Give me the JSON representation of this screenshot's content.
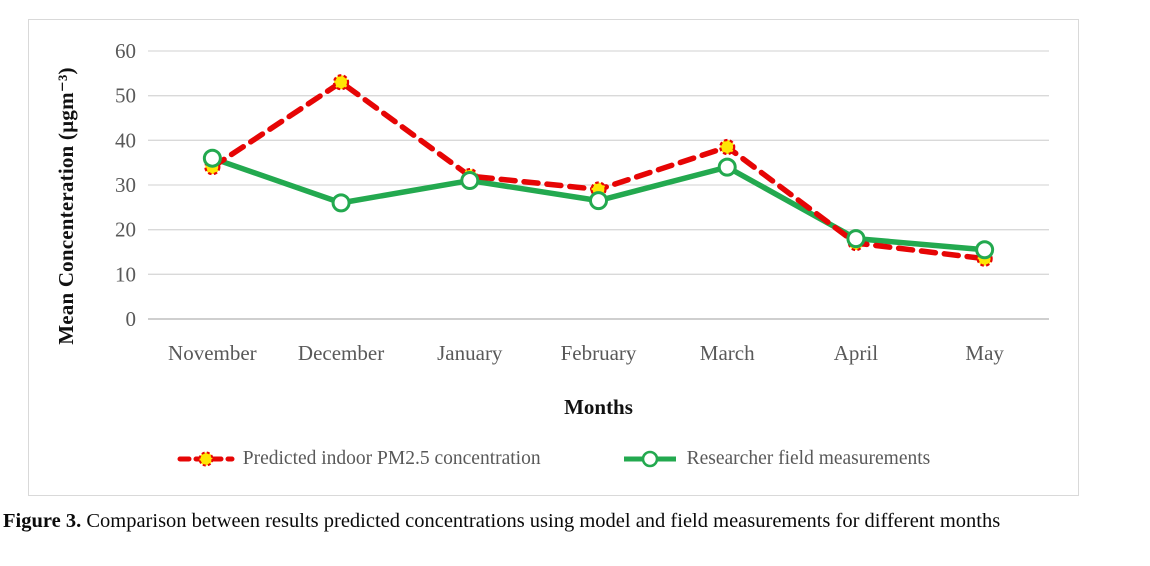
{
  "chart_data": {
    "type": "line",
    "categories": [
      "November",
      "December",
      "January",
      "February",
      "March",
      "April",
      "May"
    ],
    "series": [
      {
        "name": "Predicted indoor PM2.5 concentration",
        "values": [
          34,
          53,
          32,
          29,
          38.5,
          17,
          13.5
        ],
        "color": "#e60505",
        "line_style": "dashed",
        "marker": "yellow-circle-red-dashed-outline",
        "marker_fill": "#ffe605"
      },
      {
        "name": "Researcher field measurements",
        "values": [
          36,
          26,
          31,
          26.5,
          34,
          18,
          15.5
        ],
        "color": "#23a94f",
        "line_style": "solid",
        "marker": "white-circle-green-outline",
        "marker_fill": "#ffffff"
      }
    ],
    "title": "",
    "xlabel": "Months",
    "ylabel": "Mean Concenteration (µgm⁻³)",
    "ylim": [
      0,
      60
    ],
    "yticks": [
      0,
      10,
      20,
      30,
      40,
      50,
      60
    ],
    "grid": "horizontal",
    "grid_color": "#d9d9d9",
    "axis_line_color": "#bfbfbf",
    "tick_label_color": "#595959",
    "legend_position": "bottom"
  },
  "figure": {
    "caption_label": "Figure 3.",
    "caption_text": " Comparison between results predicted concentrations using model and field measurements for different months"
  }
}
